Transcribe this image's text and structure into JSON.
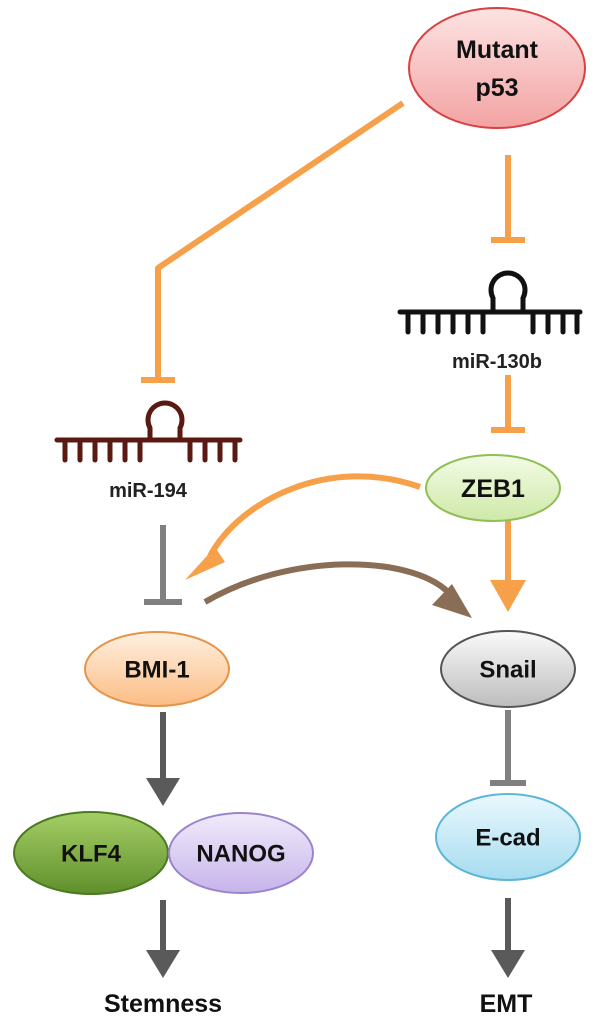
{
  "nodes": {
    "mutant_p53": {
      "line1": "Mutant",
      "line2": "p53"
    },
    "mir_194": "miR-194",
    "mir_130b": "miR-130b",
    "zeb1": "ZEB1",
    "bmi1": "BMI-1",
    "snail": "Snail",
    "klf4": "KLF4",
    "nanog": "NANOG",
    "ecad": "E-cad"
  },
  "outcomes": {
    "stemness": "Stemness",
    "emt": "EMT"
  },
  "colors": {
    "inhibit_orange": "#f7a04a",
    "inhibit_gray": "#808080",
    "activate_brown": "#8a6d55",
    "activate_gray": "#5a5a5a",
    "mir194_stroke": "#5a1a12",
    "mir130b_stroke": "#111111"
  }
}
